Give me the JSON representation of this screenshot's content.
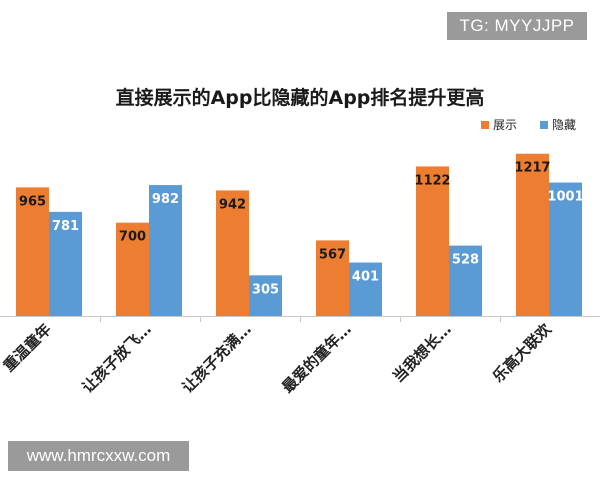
{
  "watermark_top": "TG: MYYJJPP",
  "watermark_bottom": "www.hmrcxxw.com",
  "colors": {
    "series_1": "#ed7d31",
    "series_2": "#5b9bd5"
  },
  "chart_data": {
    "type": "bar",
    "title": "直接展示的App比隐藏的App排名提升更高",
    "categories": [
      "重温童年",
      "让孩子放飞…",
      "让孩子充满…",
      "最爱的童年…",
      "当我想长…",
      "乐高大联欢"
    ],
    "series": [
      {
        "name": "展示",
        "values": [
          965,
          700,
          942,
          567,
          1122,
          1217
        ]
      },
      {
        "name": "隐藏",
        "values": [
          781,
          982,
          305,
          401,
          528,
          1001
        ]
      }
    ],
    "ylim": [
      0,
      1320
    ],
    "grid": false,
    "legend": "top-right",
    "xlabel": "",
    "ylabel": ""
  }
}
